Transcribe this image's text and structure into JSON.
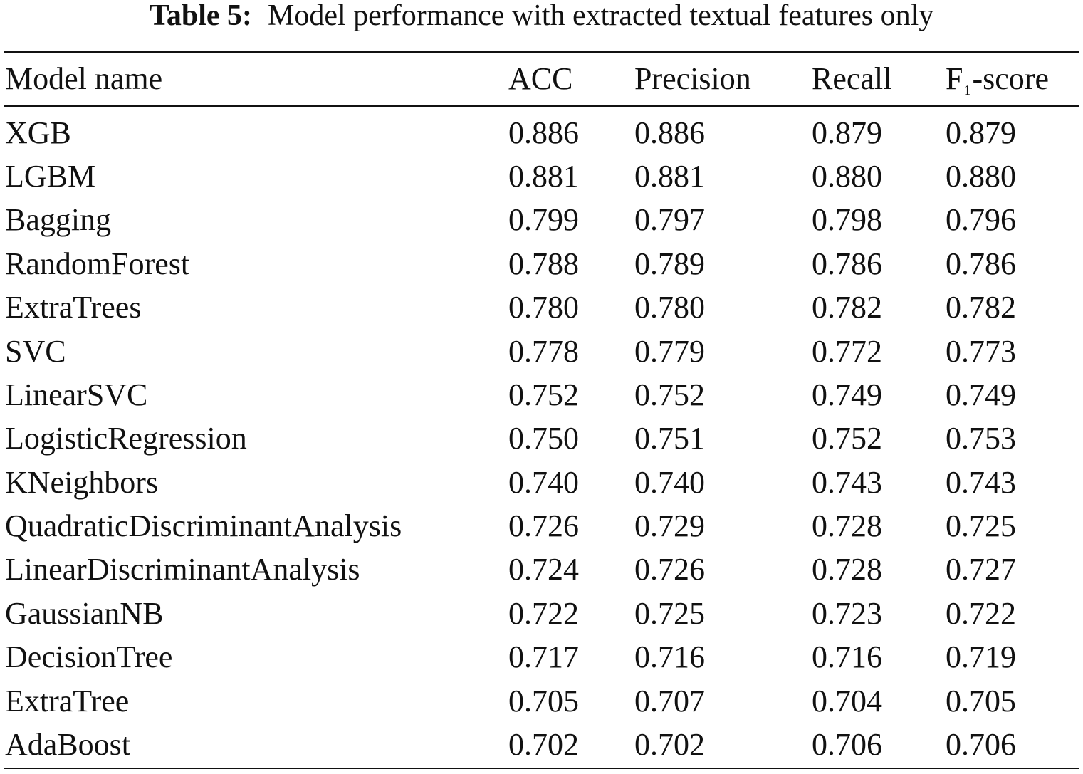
{
  "caption": {
    "label": "Table 5:",
    "text": "Model performance with extracted textual features only"
  },
  "table": {
    "headers": {
      "model": "Model name",
      "acc": "ACC",
      "precision": "Precision",
      "recall": "Recall",
      "f1_main": "F",
      "f1_sub": "1",
      "f1_suffix": "-score"
    },
    "rows": [
      {
        "name": "XGB",
        "acc": "0.886",
        "precision": "0.886",
        "recall": "0.879",
        "f1": "0.879"
      },
      {
        "name": "LGBM",
        "acc": "0.881",
        "precision": "0.881",
        "recall": "0.880",
        "f1": "0.880"
      },
      {
        "name": "Bagging",
        "acc": "0.799",
        "precision": "0.797",
        "recall": "0.798",
        "f1": "0.796"
      },
      {
        "name": "RandomForest",
        "acc": "0.788",
        "precision": "0.789",
        "recall": "0.786",
        "f1": "0.786"
      },
      {
        "name": "ExtraTrees",
        "acc": "0.780",
        "precision": "0.780",
        "recall": "0.782",
        "f1": "0.782"
      },
      {
        "name": "SVC",
        "acc": "0.778",
        "precision": "0.779",
        "recall": "0.772",
        "f1": "0.773"
      },
      {
        "name": "LinearSVC",
        "acc": "0.752",
        "precision": "0.752",
        "recall": "0.749",
        "f1": "0.749"
      },
      {
        "name": "LogisticRegression",
        "acc": "0.750",
        "precision": "0.751",
        "recall": "0.752",
        "f1": "0.753"
      },
      {
        "name": "KNeighbors",
        "acc": "0.740",
        "precision": "0.740",
        "recall": "0.743",
        "f1": "0.743"
      },
      {
        "name": "QuadraticDiscriminantAnalysis",
        "acc": "0.726",
        "precision": "0.729",
        "recall": "0.728",
        "f1": "0.725"
      },
      {
        "name": "LinearDiscriminantAnalysis",
        "acc": "0.724",
        "precision": "0.726",
        "recall": "0.728",
        "f1": "0.727"
      },
      {
        "name": "GaussianNB",
        "acc": "0.722",
        "precision": "0.725",
        "recall": "0.723",
        "f1": "0.722"
      },
      {
        "name": "DecisionTree",
        "acc": "0.717",
        "precision": "0.716",
        "recall": "0.716",
        "f1": "0.719"
      },
      {
        "name": "ExtraTree",
        "acc": "0.705",
        "precision": "0.707",
        "recall": "0.704",
        "f1": "0.705"
      },
      {
        "name": "AdaBoost",
        "acc": "0.702",
        "precision": "0.702",
        "recall": "0.706",
        "f1": "0.706"
      }
    ]
  }
}
